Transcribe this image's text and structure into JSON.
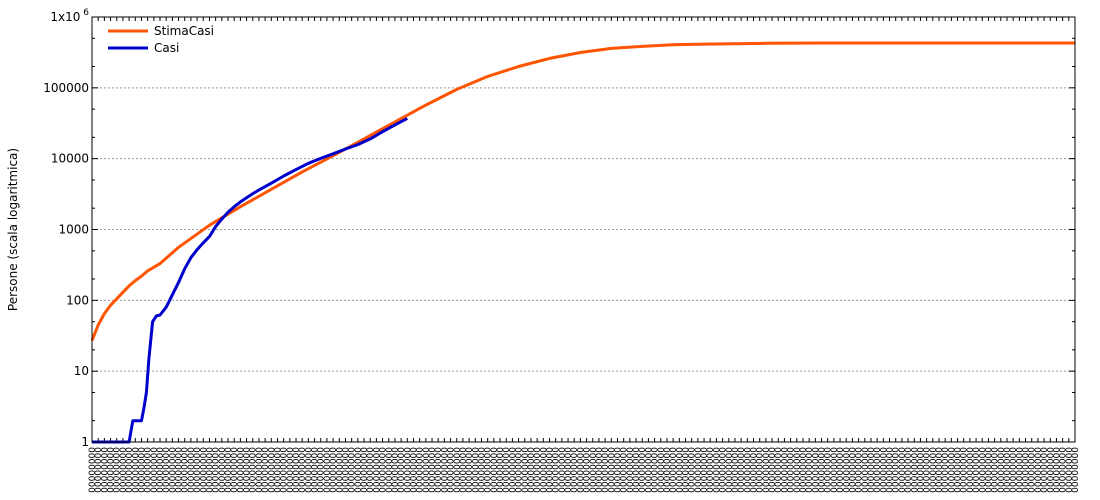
{
  "chart_data": {
    "type": "line",
    "title": "",
    "xlabel": "",
    "ylabel": "Persone (scala logaritmica)",
    "yscale": "log",
    "ylim": [
      1,
      1000000
    ],
    "yticks": [
      {
        "value": 1,
        "label": "1"
      },
      {
        "value": 10,
        "label": "10"
      },
      {
        "value": 100,
        "label": "100"
      },
      {
        "value": 1000,
        "label": "1000"
      },
      {
        "value": 10000,
        "label": "10000"
      },
      {
        "value": 100000,
        "label": "100000"
      },
      {
        "value": 1000000,
        "label": "1x10",
        "exponent": "6"
      }
    ],
    "xlim": [
      1,
      160
    ],
    "x_tick_count": 160,
    "grid": true,
    "legend_position": "top-left",
    "series": [
      {
        "name": "StimaCasi",
        "color": "#ff5500",
        "x": [
          1,
          2,
          3,
          4,
          5,
          6,
          7,
          8,
          9,
          10,
          12,
          15,
          20,
          25,
          30,
          35,
          40,
          45,
          50,
          55,
          60,
          65,
          70,
          75,
          80,
          85,
          90,
          95,
          100,
          105,
          110,
          115,
          120,
          125,
          130,
          140,
          150,
          160
        ],
        "y": [
          27,
          45,
          65,
          85,
          105,
          130,
          160,
          190,
          220,
          260,
          330,
          560,
          1150,
          2100,
          3700,
          6500,
          11000,
          19000,
          33000,
          57000,
          95000,
          145000,
          200000,
          260000,
          315000,
          360000,
          385000,
          405000,
          415000,
          420000,
          425000,
          428000,
          430000,
          430000,
          430000,
          430000,
          430000,
          430000
        ]
      },
      {
        "name": "Casi",
        "color": "#0000cc",
        "x": [
          1,
          3,
          5,
          7,
          7.6,
          8,
          9,
          9.4,
          9.8,
          10.2,
          10.8,
          11.4,
          12,
          13,
          14,
          15,
          16,
          17,
          18,
          19,
          20,
          21,
          22,
          23,
          24,
          25,
          26,
          27,
          28,
          30,
          32,
          34,
          36,
          38,
          40,
          42,
          44,
          46,
          48,
          50,
          52
        ],
        "y": [
          1,
          1,
          1,
          1,
          2,
          2,
          2,
          3,
          5,
          15,
          50,
          60,
          62,
          80,
          120,
          180,
          280,
          400,
          520,
          650,
          800,
          1100,
          1400,
          1750,
          2100,
          2450,
          2800,
          3200,
          3600,
          4500,
          5700,
          7000,
          8600,
          10100,
          11700,
          13700,
          15800,
          19000,
          24000,
          30000,
          37000
        ]
      }
    ]
  }
}
